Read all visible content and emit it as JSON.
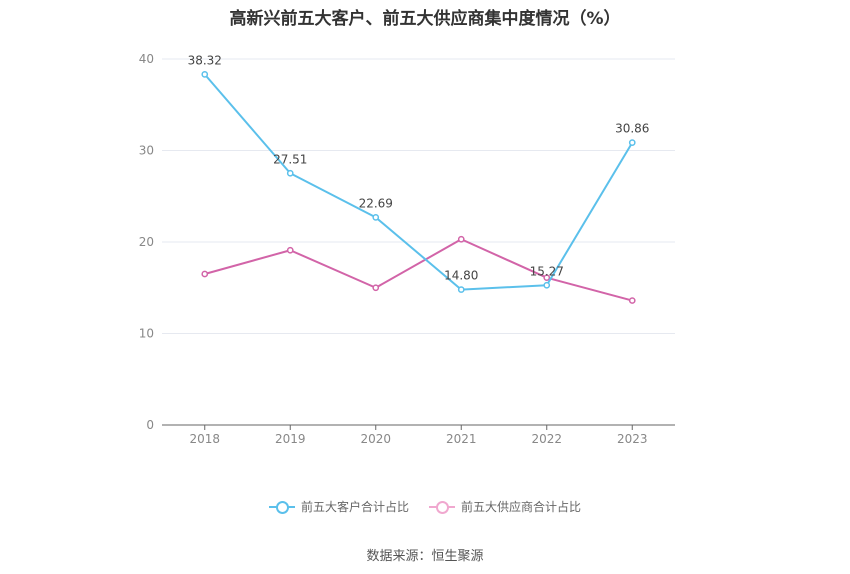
{
  "chart_data": {
    "type": "line",
    "title": "高新兴前五大客户、前五大供应商集中度情况（%）",
    "categories": [
      "2018",
      "2019",
      "2020",
      "2021",
      "2022",
      "2023"
    ],
    "ylim": [
      0,
      40
    ],
    "yticks": [
      "0",
      "10",
      "20",
      "30",
      "40"
    ],
    "grid": true,
    "legend_position": "bottom",
    "series": [
      {
        "name": "前五大客户合计占比",
        "color": "#5bc0eb",
        "values": [
          38.32,
          27.51,
          22.69,
          14.8,
          15.27,
          30.86
        ],
        "labels": [
          "38.32",
          "27.51",
          "22.69",
          "14.80",
          "15.27",
          "30.86"
        ]
      },
      {
        "name": "前五大供应商合计占比",
        "color": "#d264a8",
        "values": [
          16.5,
          19.1,
          15.0,
          20.3,
          16.1,
          13.6
        ]
      }
    ]
  },
  "source": "数据来源：恒生聚源"
}
